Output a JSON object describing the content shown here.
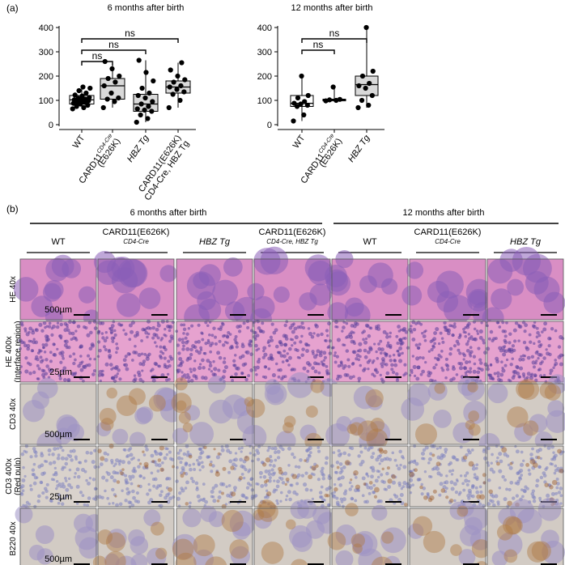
{
  "figure": {
    "panel_a_label": "(a)",
    "panel_b_label": "(b)"
  },
  "chart_data": [
    {
      "type": "box",
      "title": "6 months after birth",
      "ylim": [
        0,
        400
      ],
      "yticks": [
        "0",
        "100",
        "200",
        "300",
        "400"
      ],
      "categories": [
        {
          "lines": [
            "WT"
          ]
        },
        {
          "lines": [
            "CARD11",
            "(E626K)"
          ],
          "sup": "CD4-Cre"
        },
        {
          "lines": [
            "HBZ Tg"
          ],
          "italic": true
        },
        {
          "lines": [
            "CARD11(E626K)",
            "CD4-Cre, HBZ Tg"
          ]
        }
      ],
      "boxes": [
        {
          "q1": 85,
          "median": 102,
          "q3": 120,
          "low": 65,
          "high": 155
        },
        {
          "q1": 105,
          "median": 160,
          "q3": 190,
          "low": 70,
          "high": 260
        },
        {
          "q1": 55,
          "median": 85,
          "q3": 125,
          "low": 10,
          "high": 265
        },
        {
          "q1": 130,
          "median": 155,
          "q3": 180,
          "low": 70,
          "high": 255
        }
      ],
      "points": [
        [
          65,
          70,
          75,
          80,
          85,
          88,
          92,
          95,
          98,
          100,
          102,
          105,
          108,
          112,
          118,
          122,
          130,
          140,
          150,
          155
        ],
        [
          70,
          95,
          105,
          110,
          130,
          160,
          175,
          190,
          200,
          230,
          260
        ],
        [
          10,
          25,
          40,
          55,
          60,
          65,
          75,
          85,
          95,
          110,
          120,
          130,
          150,
          180,
          215,
          265
        ],
        [
          70,
          100,
          125,
          135,
          145,
          155,
          160,
          175,
          185,
          200,
          225,
          255
        ]
      ],
      "comparisons": [
        {
          "from": 0,
          "to": 1,
          "label": "ns"
        },
        {
          "from": 0,
          "to": 2,
          "label": "ns"
        },
        {
          "from": 0,
          "to": 3,
          "label": "ns"
        }
      ]
    },
    {
      "type": "box",
      "title": "12 months after birth",
      "ylim": [
        0,
        400
      ],
      "yticks": [
        "0",
        "100",
        "200",
        "300",
        "400"
      ],
      "categories": [
        {
          "lines": [
            "WT"
          ]
        },
        {
          "lines": [
            "CARD11",
            "(E626K)"
          ],
          "sup": "CD4-Cre"
        },
        {
          "lines": [
            "HBZ Tg"
          ],
          "italic": true
        }
      ],
      "boxes": [
        {
          "q1": 75,
          "median": 88,
          "q3": 120,
          "low": 15,
          "high": 200
        },
        {
          "q1": 98,
          "median": 102,
          "q3": 105,
          "low": 95,
          "high": 155
        },
        {
          "q1": 120,
          "median": 165,
          "q3": 200,
          "low": 70,
          "high": 400
        }
      ],
      "points": [
        [
          15,
          40,
          75,
          80,
          85,
          88,
          95,
          110,
          120,
          200
        ],
        [
          98,
          100,
          102,
          104,
          155
        ],
        [
          70,
          80,
          100,
          120,
          150,
          160,
          170,
          200,
          220,
          400
        ]
      ],
      "comparisons": [
        {
          "from": 0,
          "to": 1,
          "label": "ns"
        },
        {
          "from": 0,
          "to": 2,
          "label": "ns"
        }
      ]
    }
  ],
  "panel_b": {
    "group_6m": "6 months after birth",
    "group_12m": "12 months after birth",
    "columns": [
      {
        "lines": [
          "WT"
        ]
      },
      {
        "lines": [
          "CARD11(E626K)",
          "CD4-Cre"
        ]
      },
      {
        "lines": [
          "HBZ Tg"
        ],
        "italic": true
      },
      {
        "lines": [
          "CARD11(E626K)",
          "CD4-Cre, HBZ Tg"
        ]
      },
      {
        "lines": [
          "WT"
        ]
      },
      {
        "lines": [
          "CARD11(E626K)",
          "CD4-Cre"
        ]
      },
      {
        "lines": [
          "HBZ Tg"
        ],
        "italic": true
      }
    ],
    "rows": [
      {
        "lines": [
          "HE 40x"
        ],
        "scale": "500µm",
        "stain": "he"
      },
      {
        "lines": [
          "HE 400x",
          "(Interface region)"
        ],
        "scale": "25µm",
        "stain": "he_hi"
      },
      {
        "lines": [
          "CD3 40x"
        ],
        "scale": "500µm",
        "stain": "ihc"
      },
      {
        "lines": [
          "CD3 400x",
          "(Red pulp)"
        ],
        "scale": "25µm",
        "stain": "ihc_hi"
      },
      {
        "lines": [
          "B220 40x"
        ],
        "scale": "500µm",
        "stain": "ihc"
      }
    ]
  }
}
